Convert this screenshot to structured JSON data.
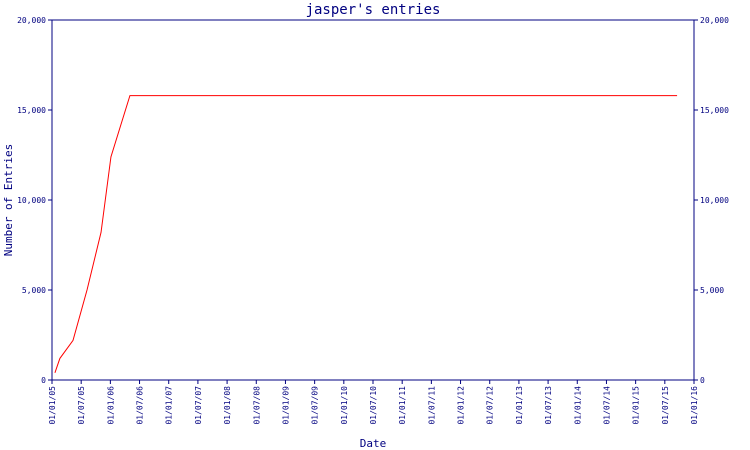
{
  "chart_data": {
    "type": "line",
    "title": "jasper's entries",
    "x_label": "Date",
    "y_label": "Number of Entries",
    "x": [
      0.1,
      0.27,
      0.72,
      1.2,
      1.68,
      2.02,
      2.67,
      21.42
    ],
    "series": [
      {
        "name": "entries",
        "color": "#ff0000",
        "values": [
          400,
          1200,
          2200,
          5000,
          8200,
          12400,
          15800,
          15800
        ]
      }
    ],
    "xlim": [
      0,
      22
    ],
    "xticks": [
      {
        "value": 0,
        "label": "01/01/05"
      },
      {
        "value": 1,
        "label": "01/07/05"
      },
      {
        "value": 2,
        "label": "01/01/06"
      },
      {
        "value": 3,
        "label": "01/07/06"
      },
      {
        "value": 4,
        "label": "01/01/07"
      },
      {
        "value": 5,
        "label": "01/07/07"
      },
      {
        "value": 6,
        "label": "01/01/08"
      },
      {
        "value": 7,
        "label": "01/07/08"
      },
      {
        "value": 8,
        "label": "01/01/09"
      },
      {
        "value": 9,
        "label": "01/07/09"
      },
      {
        "value": 10,
        "label": "01/01/10"
      },
      {
        "value": 11,
        "label": "01/07/10"
      },
      {
        "value": 12,
        "label": "01/01/11"
      },
      {
        "value": 13,
        "label": "01/07/11"
      },
      {
        "value": 14,
        "label": "01/01/12"
      },
      {
        "value": 15,
        "label": "01/07/12"
      },
      {
        "value": 16,
        "label": "01/01/13"
      },
      {
        "value": 17,
        "label": "01/07/13"
      },
      {
        "value": 18,
        "label": "01/01/14"
      },
      {
        "value": 19,
        "label": "01/07/14"
      },
      {
        "value": 20,
        "label": "01/01/15"
      },
      {
        "value": 21,
        "label": "01/07/15"
      },
      {
        "value": 22,
        "label": "01/01/16"
      }
    ],
    "ylim": [
      0,
      20000
    ],
    "yticks": [
      0,
      {
        "value": 5000,
        "label": "5,000"
      },
      {
        "value": 10000,
        "label": "10,000"
      },
      {
        "value": 15000,
        "label": "15,000"
      },
      {
        "value": 20000,
        "label": "20,000"
      }
    ],
    "y2lim": [
      0,
      20000
    ],
    "y2ticks": [
      0,
      {
        "value": 5000,
        "label": "5,000"
      },
      {
        "value": 10000,
        "label": "10,000"
      },
      {
        "value": 15000,
        "label": "15,000"
      },
      {
        "value": 20000,
        "label": "20,000"
      }
    ],
    "axis_color": "#000080"
  }
}
